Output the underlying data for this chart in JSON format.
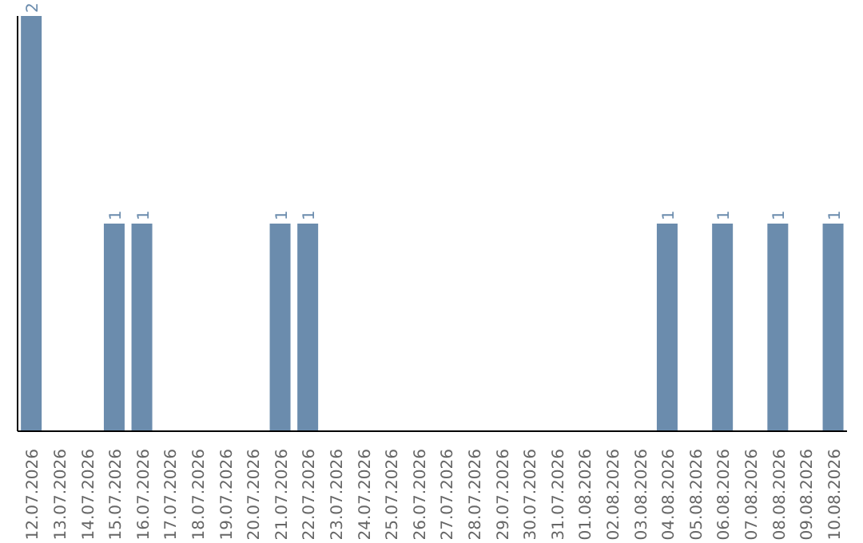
{
  "chart_data": {
    "type": "bar",
    "categories": [
      "12.07.2026",
      "13.07.2026",
      "14.07.2026",
      "15.07.2026",
      "16.07.2026",
      "17.07.2026",
      "18.07.2026",
      "19.07.2026",
      "20.07.2026",
      "21.07.2026",
      "22.07.2026",
      "23.07.2026",
      "24.07.2026",
      "25.07.2026",
      "26.07.2026",
      "27.07.2026",
      "28.07.2026",
      "29.07.2026",
      "30.07.2026",
      "31.07.2026",
      "01.08.2026",
      "02.08.2026",
      "03.08.2026",
      "04.08.2026",
      "05.08.2026",
      "06.08.2026",
      "07.08.2026",
      "08.08.2026",
      "09.08.2026",
      "10.08.2026"
    ],
    "values": [
      2,
      0,
      0,
      1,
      1,
      0,
      0,
      0,
      0,
      1,
      1,
      0,
      0,
      0,
      0,
      0,
      0,
      0,
      0,
      0,
      0,
      0,
      0,
      1,
      0,
      1,
      0,
      1,
      0,
      1
    ],
    "value_labels": [
      "2",
      null,
      null,
      "1",
      "1",
      null,
      null,
      null,
      null,
      "1",
      "1",
      null,
      null,
      null,
      null,
      null,
      null,
      null,
      null,
      null,
      null,
      null,
      null,
      "1",
      null,
      "1",
      null,
      "1",
      null,
      "1"
    ],
    "color": "#6b8cad",
    "tick_labels": "x"
  }
}
